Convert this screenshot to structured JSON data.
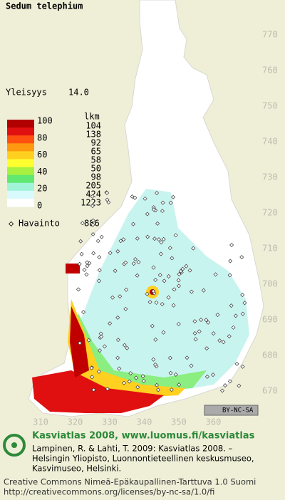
{
  "title": "Sedum telephium",
  "frequency": {
    "label": "Yleisyys",
    "value": "14.0"
  },
  "legend": {
    "unit": "lkm",
    "scale": [
      100,
      80,
      60,
      40,
      20,
      0
    ],
    "colors": [
      "#b00000",
      "#e01010",
      "#ff5010",
      "#ff9a10",
      "#ffd020",
      "#ffff30",
      "#a8f040",
      "#60e870",
      "#a0f4d8",
      "#d8fafc",
      "#ffffff"
    ],
    "counts": [
      104,
      138,
      92,
      65,
      58,
      50,
      98,
      205,
      424,
      1223
    ]
  },
  "observations": {
    "label": "Havainto",
    "count": 886
  },
  "grid": {
    "north": [
      770,
      760,
      750,
      740,
      730,
      720,
      710,
      700,
      690,
      680,
      670
    ],
    "east": [
      310,
      320,
      330,
      340,
      350,
      360
    ]
  },
  "license_badge": "BY-NC-SA",
  "footer": {
    "heading": "Kasviatlas 2008, www.luomus.fi/kasviatlas",
    "citation": [
      "Lampinen, R. & Lahti, T. 2009: Kasviatlas 2008. –",
      "Helsingin Yliopisto, Luonnontieteellinen keskusmuseo,",
      "Kasvimuseo, Helsinki."
    ],
    "license": [
      "Creative Commons Nimeä-Epäkaupallinen-Tarttuva 1.0 Suomi",
      "http://creativecommons.org/licenses/by-nc-sa/1.0/fi"
    ]
  }
}
